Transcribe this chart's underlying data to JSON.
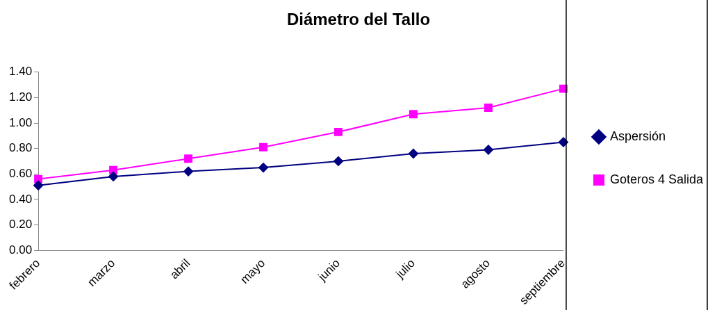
{
  "chart_data": {
    "type": "line",
    "title": "Diámetro del Tallo",
    "categories": [
      "febrero",
      "marzo",
      "abril",
      "mayo",
      "junio",
      "julio",
      "agosto",
      "septiembre"
    ],
    "series": [
      {
        "name": "Aspersión",
        "color": "#000080",
        "marker": "diamond",
        "values": [
          0.51,
          0.58,
          0.62,
          0.65,
          0.7,
          0.76,
          0.79,
          0.85
        ]
      },
      {
        "name": "Goteros 4 Salida",
        "color": "#ff00ff",
        "marker": "square",
        "values": [
          0.56,
          0.63,
          0.72,
          0.81,
          0.93,
          1.07,
          1.12,
          1.27
        ]
      }
    ],
    "ylim": [
      0,
      1.4
    ],
    "yticks": [
      {
        "value": 0,
        "label": "0.00"
      },
      {
        "value": 0.2,
        "label": "0.20"
      },
      {
        "value": 0.4,
        "label": "0.40"
      },
      {
        "value": 0.6,
        "label": "0.60"
      },
      {
        "value": 0.8,
        "label": "0.80"
      },
      {
        "value": 1.0,
        "label": "1.00"
      },
      {
        "value": 1.2,
        "label": "1.20"
      },
      {
        "value": 1.4,
        "label": "1.40"
      }
    ],
    "grid": false,
    "legend": "right"
  }
}
